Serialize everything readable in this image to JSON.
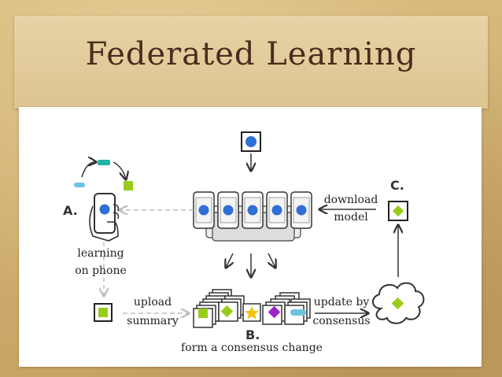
{
  "slide": {
    "title": "Federated Learning"
  },
  "diagram": {
    "markers": {
      "a": "A.",
      "b": "B.",
      "c": "C."
    },
    "labels": {
      "learning": "learning",
      "on_phone": "on phone",
      "upload": "upload",
      "summary": "summary",
      "download": "download",
      "model": "model",
      "update_by": "update by",
      "consensus": "consensus",
      "form_consensus": "form a consensus change"
    },
    "colors": {
      "blue": "#2f6fd6",
      "green": "#99cc1a",
      "teal": "#21b3a8",
      "cyan": "#6ec3dd",
      "yellow": "#f4c20d",
      "purple": "#a020d0",
      "arrow_gray": "#bdbdbd"
    }
  }
}
